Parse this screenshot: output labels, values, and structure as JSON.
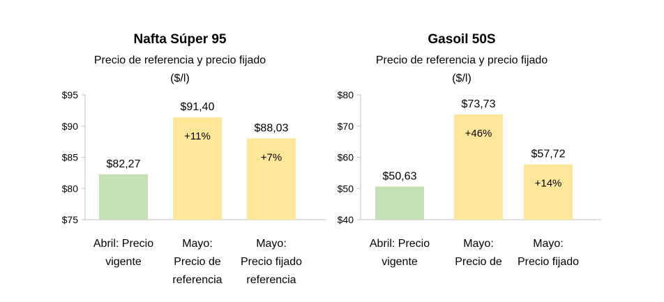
{
  "charts": [
    {
      "type": "bar",
      "title": "Nafta Súper 95",
      "subtitle_lines": [
        "Precio de referencia y precio fijado",
        "($/l)"
      ],
      "yticks": [
        "$95",
        "$90",
        "$85",
        "$80",
        "$75"
      ],
      "ylim": [
        75,
        95
      ],
      "categories": [
        {
          "lines": [
            "Abril: Precio",
            "vigente"
          ]
        },
        {
          "lines": [
            "Mayo:",
            "Precio de",
            "referencia"
          ]
        },
        {
          "lines": [
            "Mayo:",
            "Precio fijado",
            "referencia"
          ]
        }
      ],
      "values": [
        82.27,
        91.4,
        88.03
      ],
      "value_labels": [
        "$82,27",
        "$91,40",
        "$88,03"
      ],
      "pct_labels": [
        "",
        "+11%",
        "+7%"
      ],
      "colors": [
        "#c5e0b4",
        "#ffe699",
        "#ffe699"
      ]
    },
    {
      "type": "bar",
      "title": "Gasoil 50S",
      "subtitle_lines": [
        "Precio de referencia y precio fijado",
        "($/l)"
      ],
      "yticks": [
        "$80",
        "$70",
        "$60",
        "$50",
        "$40"
      ],
      "ylim": [
        40,
        80
      ],
      "categories": [
        {
          "lines": [
            "Abril: Precio",
            "vigente"
          ]
        },
        {
          "lines": [
            "Mayo:",
            "Precio de"
          ]
        },
        {
          "lines": [
            "Mayo:",
            "Precio fijado"
          ]
        }
      ],
      "values": [
        50.63,
        73.73,
        57.72
      ],
      "value_labels": [
        "$50,63",
        "$73,73",
        "$57,72"
      ],
      "pct_labels": [
        "",
        "+46%",
        "+14%"
      ],
      "colors": [
        "#c5e0b4",
        "#ffe699",
        "#ffe699"
      ]
    }
  ]
}
